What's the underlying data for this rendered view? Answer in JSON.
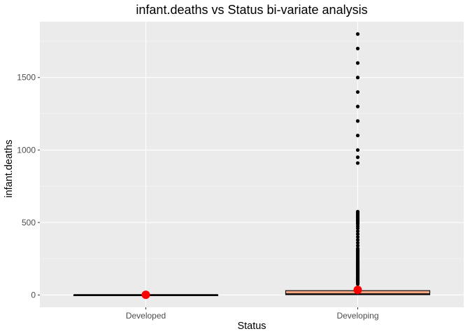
{
  "chart_data": {
    "type": "boxplot",
    "title": "infant.deaths vs Status bi-variate analysis",
    "xlabel": "Status",
    "ylabel": "infant.deaths",
    "categories": [
      "Developed",
      "Developing"
    ],
    "ylim": [
      -85,
      1885
    ],
    "yticks": [
      0,
      500,
      1000,
      1500
    ],
    "grid": true,
    "legend": "none",
    "colors": {
      "panel": "#ebebeb",
      "grid_major": "#ffffff",
      "box_fill": "#f4a582",
      "box_outline": "#000000",
      "outlier": "#000000",
      "mean_point": "#ff0000"
    },
    "boxes": [
      {
        "category": "Developed",
        "min": 0,
        "q1": 0,
        "median": 0,
        "q3": 1,
        "max": 2,
        "mean": 1.5,
        "outliers": []
      },
      {
        "category": "Developing",
        "min": 0,
        "q1": 2,
        "median": 5,
        "q3": 30,
        "max": 71,
        "mean": 35,
        "outliers": [
          75,
          80,
          85,
          90,
          95,
          100,
          105,
          110,
          115,
          120,
          125,
          130,
          135,
          140,
          145,
          150,
          155,
          160,
          165,
          170,
          175,
          180,
          185,
          190,
          195,
          200,
          205,
          210,
          215,
          220,
          225,
          230,
          240,
          250,
          260,
          270,
          280,
          290,
          300,
          310,
          320,
          340,
          360,
          380,
          400,
          420,
          440,
          460,
          475,
          490,
          500,
          510,
          520,
          530,
          540,
          550,
          560,
          570,
          575,
          910,
          950,
          1000,
          1100,
          1200,
          1300,
          1400,
          1500,
          1600,
          1700,
          1800
        ]
      }
    ]
  }
}
